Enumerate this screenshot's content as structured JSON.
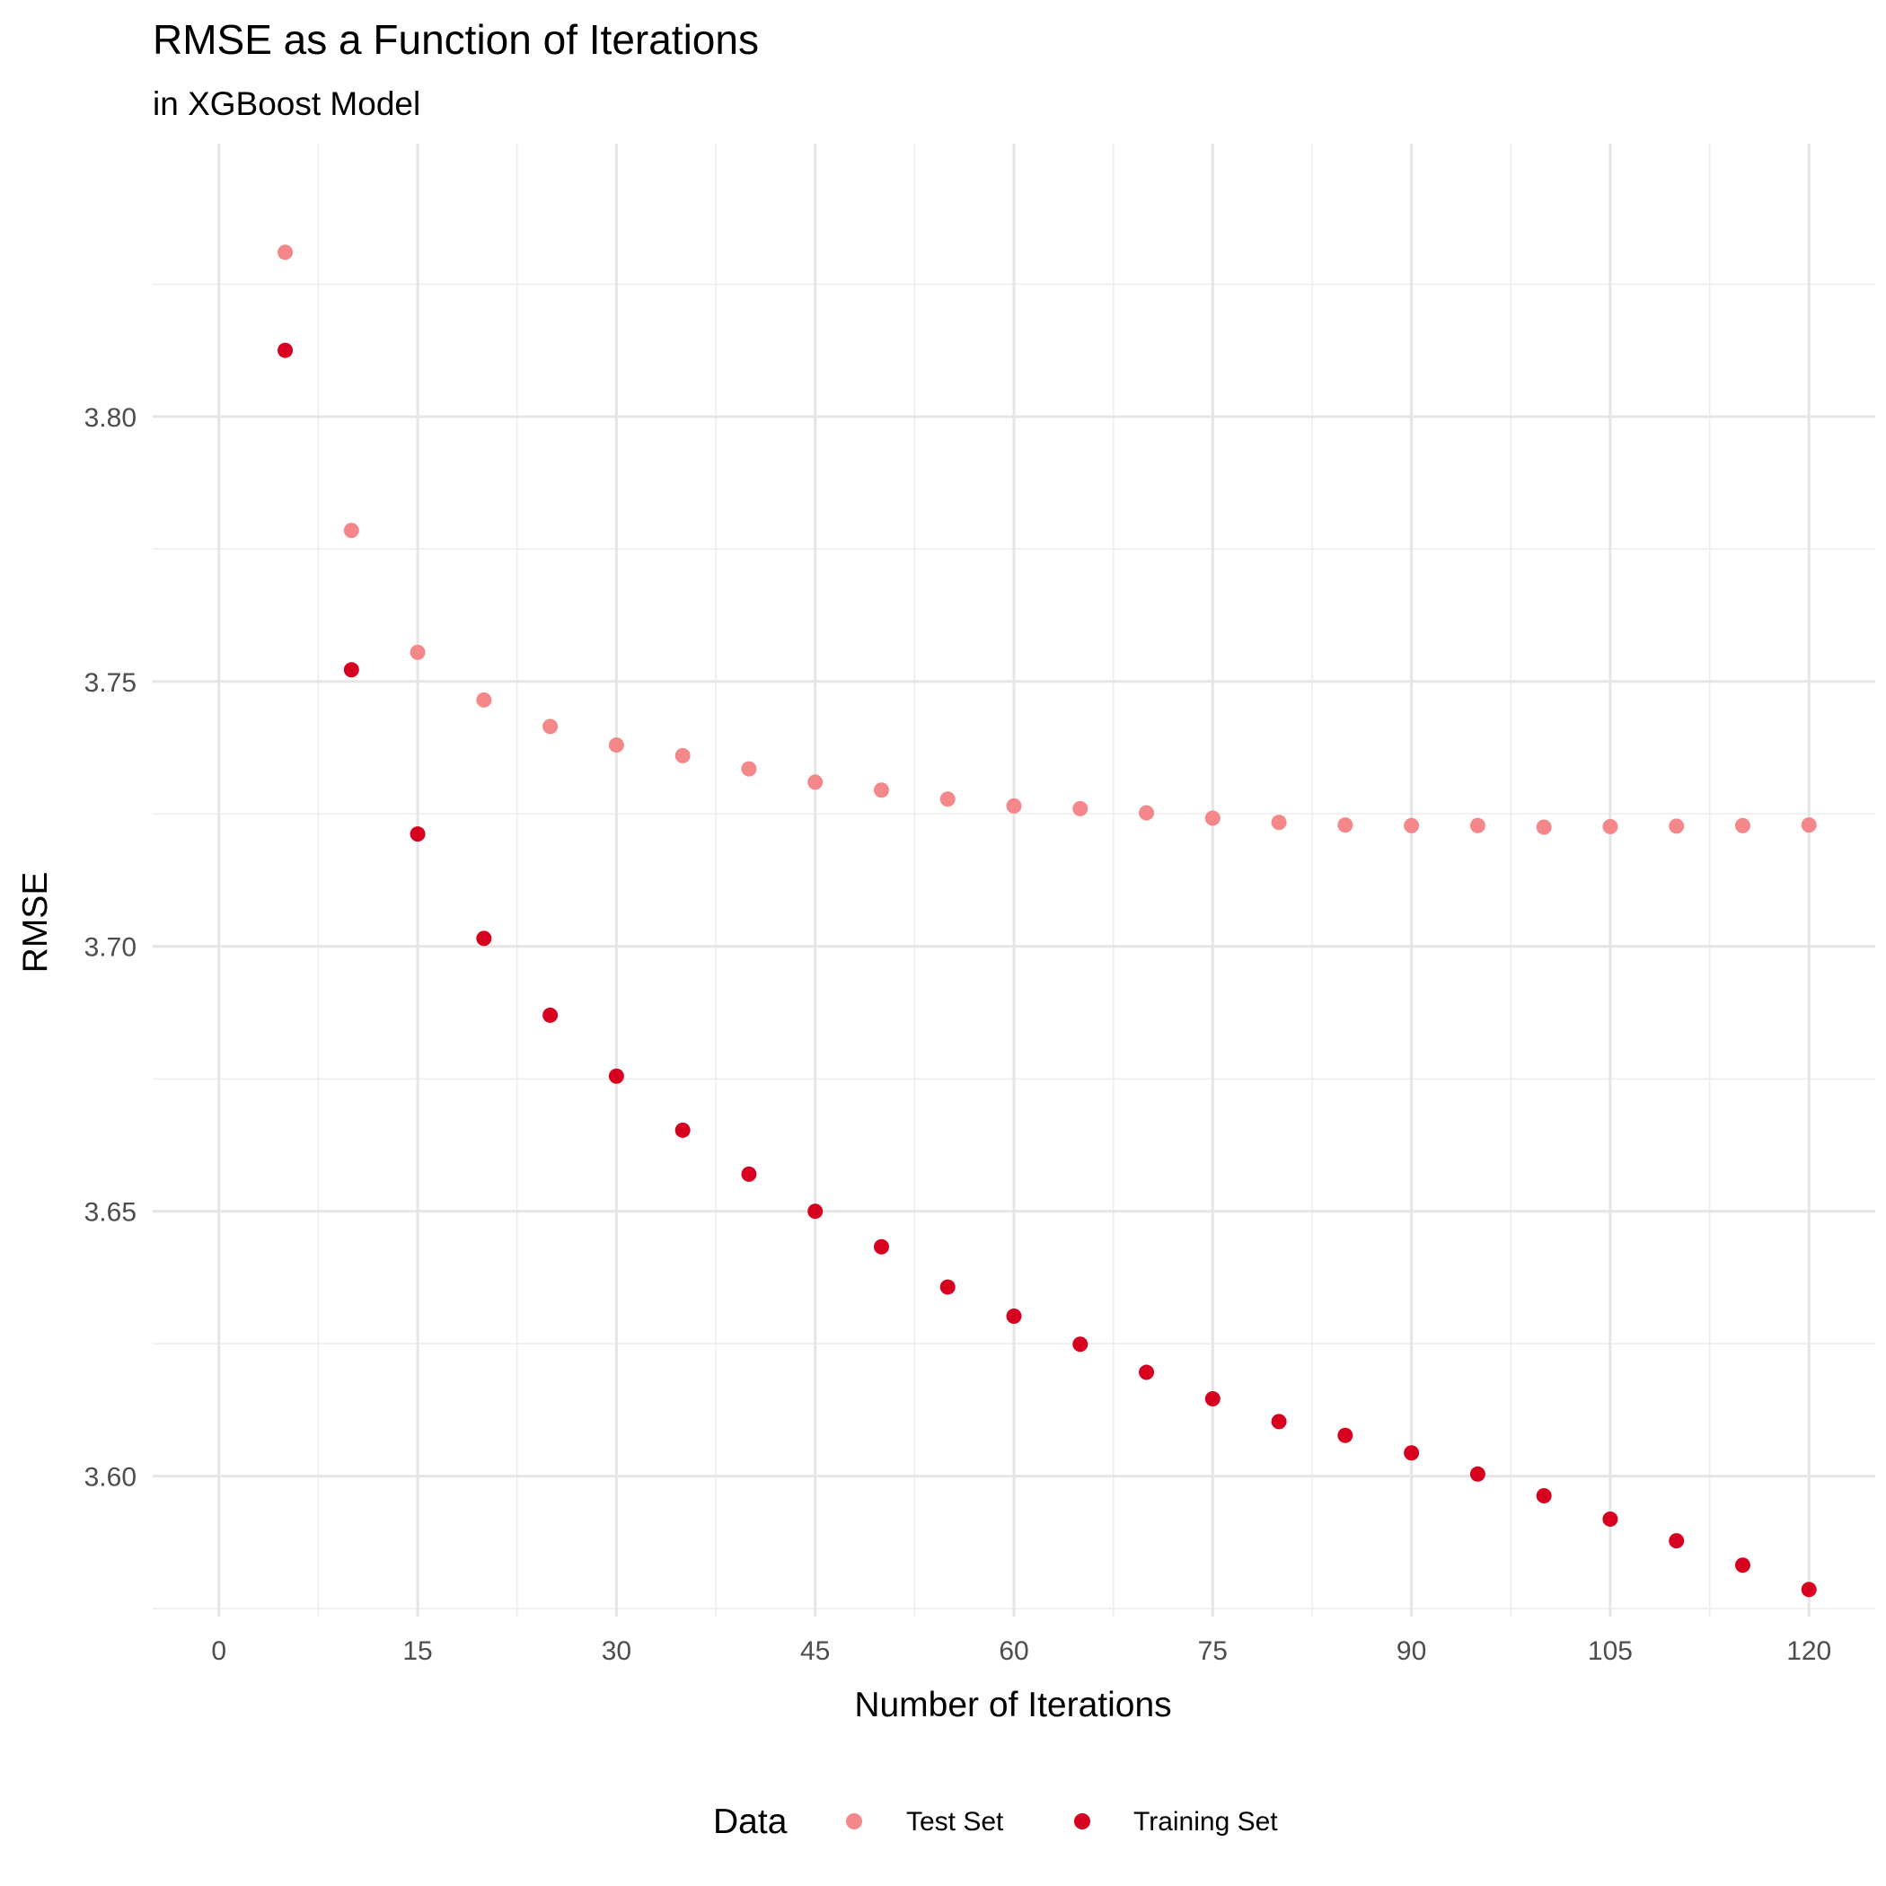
{
  "chart_data": {
    "type": "scatter",
    "title": "RMSE as a Function of Iterations",
    "subtitle": "in XGBoost Model",
    "xlabel": "Number of Iterations",
    "ylabel": "RMSE",
    "xlim": [
      -5,
      125
    ],
    "ylim": [
      3.5735,
      3.8515
    ],
    "x_ticks": [
      0,
      15,
      30,
      45,
      60,
      75,
      90,
      105,
      120
    ],
    "y_ticks": [
      3.6,
      3.65,
      3.7,
      3.75,
      3.8
    ],
    "y_tick_labels": [
      "3.60",
      "3.65",
      "3.70",
      "3.75",
      "3.80"
    ],
    "x_tick_labels": [
      "0",
      "15",
      "30",
      "45",
      "60",
      "75",
      "90",
      "105",
      "120"
    ],
    "grid": true,
    "legend": {
      "title": "Data",
      "position": "bottom"
    },
    "series": [
      {
        "name": "Test Set",
        "color": "#F4878A",
        "points": [
          [
            5,
            3.831
          ],
          [
            10,
            3.7785
          ],
          [
            15,
            3.7555
          ],
          [
            20,
            3.7465
          ],
          [
            25,
            3.7415
          ],
          [
            30,
            3.738
          ],
          [
            35,
            3.736
          ],
          [
            40,
            3.7335
          ],
          [
            45,
            3.731
          ],
          [
            50,
            3.7295
          ],
          [
            55,
            3.7278
          ],
          [
            60,
            3.7265
          ],
          [
            65,
            3.726
          ],
          [
            70,
            3.7252
          ],
          [
            75,
            3.7242
          ],
          [
            80,
            3.7234
          ],
          [
            85,
            3.7229
          ],
          [
            90,
            3.7228
          ],
          [
            95,
            3.7228
          ],
          [
            100,
            3.7225
          ],
          [
            105,
            3.7226
          ],
          [
            110,
            3.7227
          ],
          [
            115,
            3.7228
          ],
          [
            120,
            3.7229
          ]
        ]
      },
      {
        "name": "Training Set",
        "color": "#D7001F",
        "points": [
          [
            5,
            3.8125
          ],
          [
            10,
            3.7522
          ],
          [
            15,
            3.7212
          ],
          [
            20,
            3.7015
          ],
          [
            25,
            3.687
          ],
          [
            30,
            3.6755
          ],
          [
            35,
            3.6653
          ],
          [
            40,
            3.657
          ],
          [
            45,
            3.65
          ],
          [
            50,
            3.6433
          ],
          [
            55,
            3.6357
          ],
          [
            60,
            3.6302
          ],
          [
            65,
            3.6249
          ],
          [
            70,
            3.6196
          ],
          [
            75,
            3.6146
          ],
          [
            80,
            3.6103
          ],
          [
            85,
            3.6077
          ],
          [
            90,
            3.6044
          ],
          [
            95,
            3.6004
          ],
          [
            100,
            3.5963
          ],
          [
            105,
            3.5919
          ],
          [
            110,
            3.5878
          ],
          [
            115,
            3.5832
          ],
          [
            120,
            3.5786
          ]
        ]
      }
    ]
  }
}
